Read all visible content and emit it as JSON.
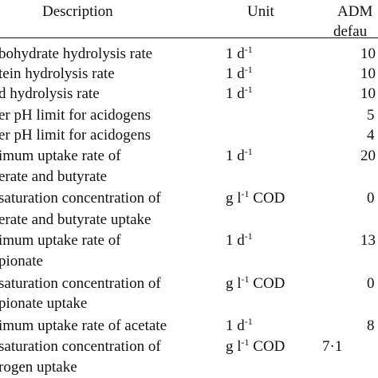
{
  "header": {
    "description": "Description",
    "unit": "Unit",
    "adm_line1": "ADM",
    "adm_line2": "defau"
  },
  "rows": [
    {
      "desc": [
        "bohydrate hydrolysis rate"
      ],
      "unit": {
        "base": "1 d",
        "sup": "-1",
        "rest": ""
      },
      "value": "10"
    },
    {
      "desc": [
        "tein hydrolysis rate"
      ],
      "unit": {
        "base": "1 d",
        "sup": "-1",
        "rest": ""
      },
      "value": "10"
    },
    {
      "desc": [
        "d hydrolysis rate"
      ],
      "unit": {
        "base": "1 d",
        "sup": "-1",
        "rest": ""
      },
      "value": "10"
    },
    {
      "desc": [
        "er pH limit for acidogens"
      ],
      "unit": {
        "base": "",
        "sup": "",
        "rest": ""
      },
      "value": "5"
    },
    {
      "desc": [
        "er pH limit for acidogens"
      ],
      "unit": {
        "base": "",
        "sup": "",
        "rest": ""
      },
      "value": "4"
    },
    {
      "desc": [
        "imum uptake rate of",
        "erate and butyrate"
      ],
      "unit": {
        "base": "1 d",
        "sup": "-1",
        "rest": ""
      },
      "value": "20"
    },
    {
      "desc": [
        "saturation concentration of",
        "erate and butyrate uptake"
      ],
      "unit": {
        "base": "g l",
        "sup": "-1",
        "rest": " COD"
      },
      "value": "0"
    },
    {
      "desc": [
        "imum uptake rate of",
        "pionate"
      ],
      "unit": {
        "base": "1 d",
        "sup": "-1",
        "rest": ""
      },
      "value": "13"
    },
    {
      "desc": [
        "saturation concentration of",
        "pionate uptake"
      ],
      "unit": {
        "base": "g l",
        "sup": "-1",
        "rest": " COD"
      },
      "value": "0"
    },
    {
      "desc": [
        "imum uptake rate of acetate"
      ],
      "unit": {
        "base": "1 d",
        "sup": "-1",
        "rest": ""
      },
      "value": "8"
    },
    {
      "desc": [
        "saturation concentration of",
        "rogen uptake"
      ],
      "unit": {
        "base": "g l",
        "sup": "-1",
        "rest": " COD"
      },
      "value": "7·1"
    }
  ]
}
